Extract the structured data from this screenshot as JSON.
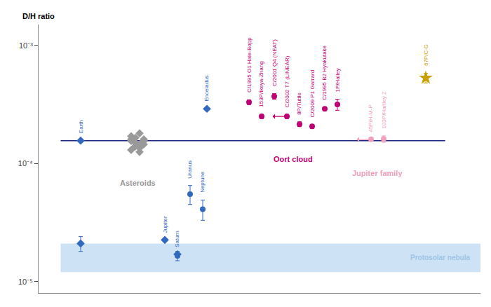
{
  "chart_data": {
    "type": "scatter",
    "log": "y",
    "ylabel": "D/H ratio",
    "xlim": [
      0,
      10.5
    ],
    "xticks": [],
    "ylim": [
      8e-06,
      0.0015
    ],
    "yticks": [
      {
        "value": 1e-05,
        "label": "10⁻⁵"
      },
      {
        "value": 0.0001,
        "label": "10⁻⁴"
      },
      {
        "value": 0.001,
        "label": "10⁻³"
      }
    ],
    "tick_labels": "y",
    "grid": false,
    "band": {
      "lo": 1.2e-05,
      "hi": 2.1e-05,
      "label": "Protosolar nebula",
      "color": "#cde3f5",
      "label_color": "#a0c4e8"
    },
    "hline": {
      "value": 0.000156,
      "color": "#1a237e"
    },
    "series": [
      {
        "marker": "diamond",
        "color": "#3169c0",
        "x": [
          1
        ],
        "values": [
          0.000156
        ],
        "labels": [
          "Earth"
        ]
      },
      {
        "marker": "diamond",
        "color": "#3169c0",
        "x": [
          1
        ],
        "values": [
          2.1e-05
        ],
        "error": [
          3e-06
        ]
      },
      {
        "marker": "diamond",
        "color": "#999999",
        "label": "Asteroids",
        "x": [
          2.2,
          2.3,
          2.4,
          2.5,
          2.2,
          2.3,
          2.4,
          2.5,
          2.3,
          2.4,
          2.2,
          2.5,
          2.3,
          2.4,
          2.2,
          2.5
        ],
        "values": [
          0.00017,
          0.000165,
          0.00018,
          0.00016,
          0.000155,
          0.00015,
          0.000145,
          0.000155,
          0.00014,
          0.000135,
          0.00013,
          0.000145,
          0.00014,
          0.000125,
          0.00016,
          0.000155
        ]
      },
      {
        "marker": "diamond",
        "color": "#3169c0",
        "x": [
          4
        ],
        "values": [
          0.00029
        ],
        "labels": [
          "Enceladus"
        ]
      },
      {
        "marker": "diamond",
        "color": "#3169c0",
        "x": [
          3.0
        ],
        "values": [
          2.25e-05
        ],
        "labels": [
          "Jupiter"
        ]
      },
      {
        "marker": "diamond",
        "color": "#3169c0",
        "x": [
          3.3
        ],
        "values": [
          1.7e-05
        ],
        "labels": [
          "Saturn"
        ]
      },
      {
        "marker": "circle",
        "color": "#3169c0",
        "x": [
          3.3
        ],
        "values": [
          1.65e-05
        ],
        "error": [
          1.5e-06
        ]
      },
      {
        "marker": "circle",
        "color": "#3169c0",
        "x": [
          3.6
        ],
        "values": [
          5.5e-05
        ],
        "error": [
          1e-05
        ],
        "labels": [
          "Uranus"
        ]
      },
      {
        "marker": "circle",
        "color": "#3169c0",
        "x": [
          3.9
        ],
        "values": [
          4.1e-05
        ],
        "error": [
          8e-06
        ],
        "labels": [
          "Neptune"
        ]
      },
      {
        "marker": "circle",
        "color": "#be0073",
        "label": "Oort cloud",
        "x": [
          5.0,
          5.3,
          5.6,
          5.9,
          6.2,
          6.5,
          6.8,
          7.1
        ],
        "values": [
          0.00033,
          0.00025,
          0.00037,
          0.00025,
          0.000215,
          0.000206,
          0.00029,
          0.000316
        ],
        "error_lo": [
          1.5e-05,
          1e-05,
          2e-05,
          1e-05,
          1e-05,
          8e-06,
          1e-05,
          3.4e-05
        ],
        "error_hi": [
          1.5e-05,
          1e-05,
          2e-05,
          1e-05,
          1e-05,
          8e-06,
          1e-05,
          3.4e-05
        ],
        "upper_limit": [
          false,
          false,
          false,
          true,
          false,
          false,
          false,
          false
        ],
        "labels": [
          "C/1995 O1 Hale-Bopp",
          "153P/Ikeya-Zhang",
          "C/2001 Q4 (NEAT)",
          "C/2002 T7 (LINEAR)",
          "8P/Tuttle",
          "C/2009 P1 Garrard",
          "C/1995 B2 Hyakutake",
          "1P/Halley"
        ]
      },
      {
        "marker": "circle",
        "color": "#f0a0b8",
        "label": "Jupiter family",
        "x": [
          7.9,
          8.2
        ],
        "values": [
          0.00016,
          0.000161
        ],
        "error_lo": [
          0,
          1e-05
        ],
        "error_hi": [
          0,
          1e-05
        ],
        "upper_limit": [
          true,
          false
        ],
        "labels": [
          "45P/H-M-P",
          "103P/Hartley 2"
        ]
      },
      {
        "marker": "star",
        "color": "#c8a000",
        "x": [
          9.2
        ],
        "values": [
          0.00053
        ],
        "error_lo": [
          5e-05
        ],
        "error_hi": [
          5e-05
        ],
        "labels": [
          "67P/C-G"
        ]
      }
    ]
  }
}
